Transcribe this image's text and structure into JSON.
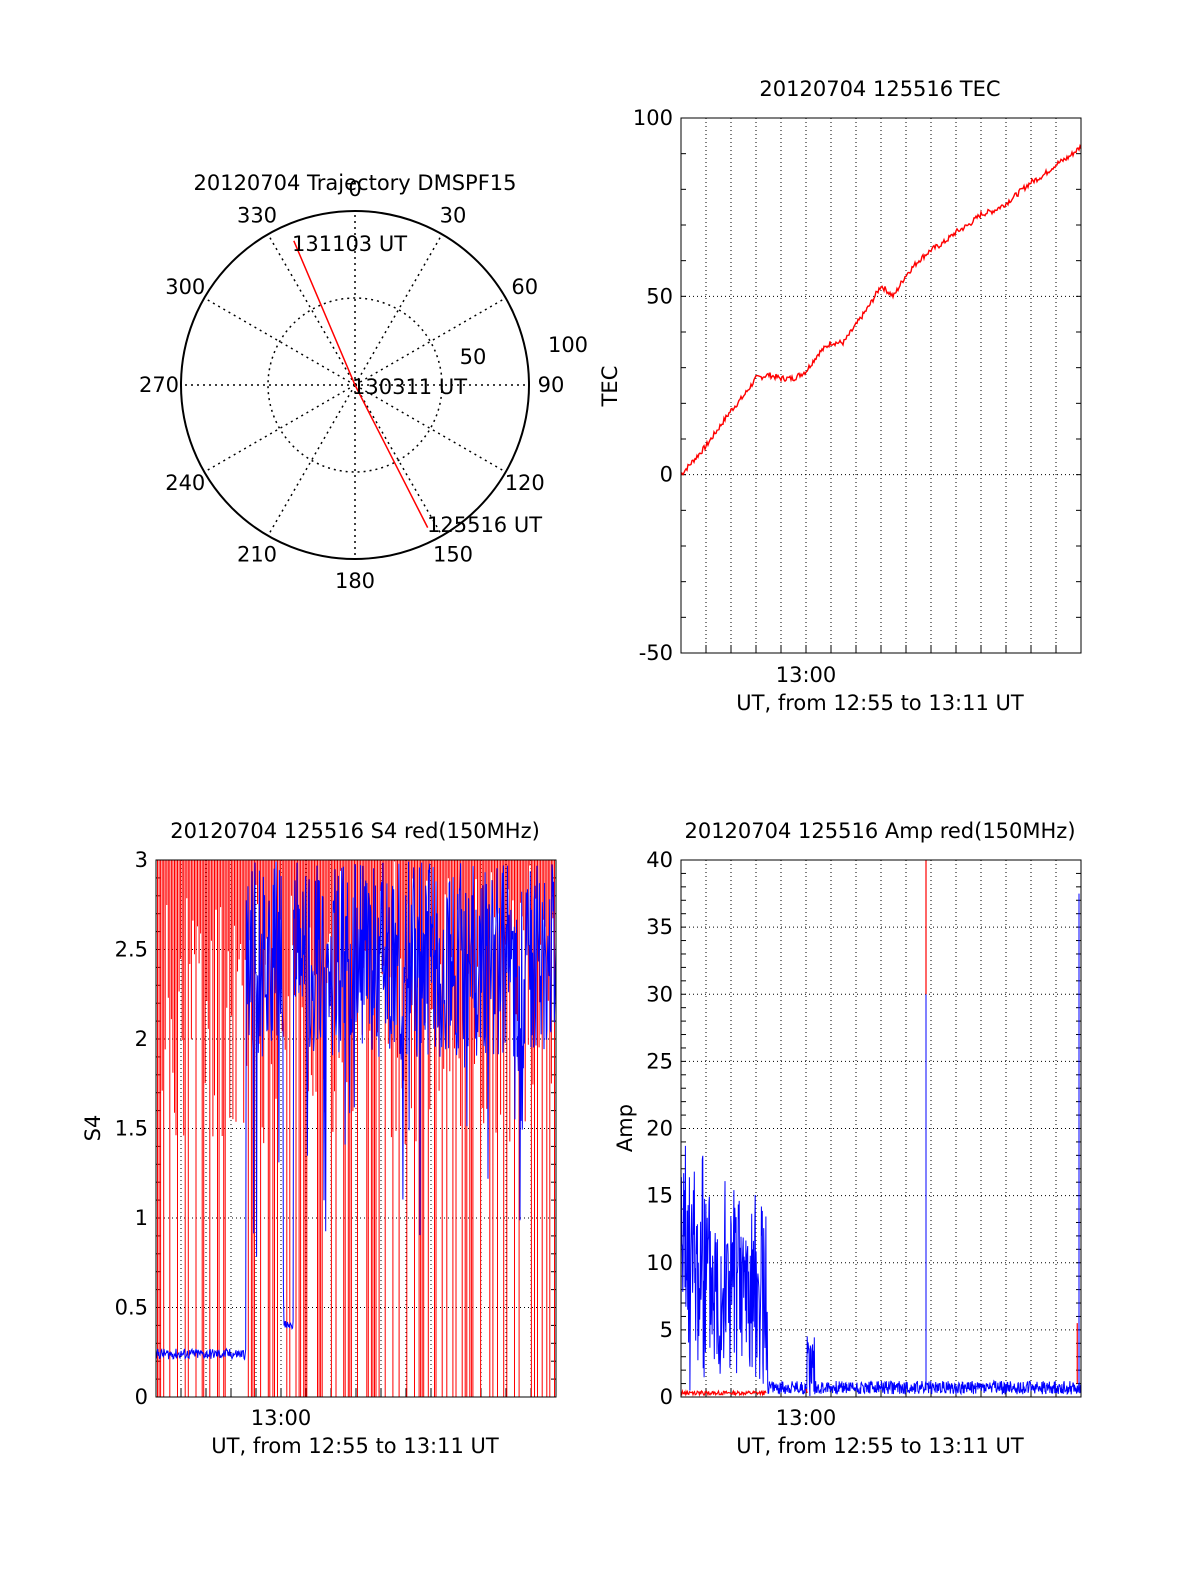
{
  "chart_data": [
    {
      "type": "polar",
      "title": "20120704 Trajectory DMSPF15",
      "azimuth_labels": [
        "0",
        "30",
        "60",
        "90",
        "120",
        "150",
        "180",
        "210",
        "240",
        "270",
        "300",
        "330"
      ],
      "radial_labels": [
        "50",
        "100"
      ],
      "radial_range": [
        0,
        100
      ],
      "grid": true,
      "trajectory": {
        "color": "#ff0000",
        "points": [
          {
            "az": 153,
            "r": 92,
            "label": "125516 UT"
          },
          {
            "az": 153,
            "r": 0,
            "label": "130311 UT"
          },
          {
            "az": 337,
            "r": 90,
            "label": "131103 UT"
          }
        ]
      }
    },
    {
      "type": "line",
      "title": "20120704 125516 TEC",
      "xlabel": "UT, from 12:55 to 13:11 UT",
      "ylabel": "TEC",
      "x_range": [
        "12:55",
        "13:11"
      ],
      "x_ticks": [
        "13:00"
      ],
      "ylim": [
        -50,
        100
      ],
      "y_ticks": [
        "-50",
        "0",
        "50",
        "100"
      ],
      "grid": true,
      "series": [
        {
          "color": "#ff0000",
          "x_minutes": [
            0,
            0.5,
            1,
            1.5,
            2,
            2.5,
            3,
            3.5,
            4,
            4.5,
            5,
            5.5,
            6,
            6.5,
            7,
            7.5,
            8,
            8.5,
            9,
            9.5,
            10,
            10.5,
            11,
            11.5,
            12,
            12.5,
            13,
            13.5,
            14,
            14.5,
            15,
            15.5,
            16
          ],
          "values": [
            0,
            4,
            8,
            13,
            18,
            22,
            27,
            28,
            27,
            27,
            29,
            34,
            37,
            37,
            42,
            47,
            53,
            50,
            56,
            60,
            63,
            65,
            68,
            70,
            73,
            74,
            76,
            79,
            82,
            84,
            87,
            89,
            92
          ]
        }
      ]
    },
    {
      "type": "line",
      "title": "20120704 125516 S4 red(150MHz)",
      "xlabel": "UT, from 12:55 to 13:11 UT",
      "ylabel": "S4",
      "x_range": [
        "12:55",
        "13:11"
      ],
      "x_ticks": [
        "13:00"
      ],
      "ylim": [
        0,
        3
      ],
      "y_ticks": [
        "0",
        "0.5",
        "1",
        "1.5",
        "2",
        "2.5",
        "3"
      ],
      "grid": true,
      "series": [
        {
          "color": "#ff0000",
          "description_values": [
            0,
            3
          ],
          "note": "saturated spikes between 0 and 3 throughout"
        },
        {
          "color": "#0000ff",
          "x_minutes": [
            0,
            1,
            2,
            3,
            3.5,
            4,
            5,
            5.2,
            5.5,
            6,
            7,
            8,
            9,
            10,
            11,
            12,
            13,
            14,
            15,
            16
          ],
          "values": [
            0.23,
            0.24,
            0.25,
            0.26,
            0.25,
            2.7,
            2.4,
            0.4,
            2.6,
            2.8,
            2.5,
            2.7,
            2.6,
            2.5,
            2.7,
            2.6,
            2.5,
            2.6,
            2.5,
            2.6
          ]
        }
      ]
    },
    {
      "type": "line",
      "title": "20120704 125516 Amp red(150MHz)",
      "xlabel": "UT, from 12:55 to 13:11 UT",
      "ylabel": "Amp",
      "x_range": [
        "12:55",
        "13:11"
      ],
      "x_ticks": [
        "13:00"
      ],
      "ylim": [
        0,
        40
      ],
      "y_ticks": [
        "0",
        "5",
        "10",
        "15",
        "20",
        "25",
        "30",
        "35",
        "40"
      ],
      "grid": true,
      "series": [
        {
          "color": "#ff0000",
          "x_minutes": [
            0,
            3.4,
            5.0,
            9.8,
            15.8,
            16
          ],
          "values": [
            0.3,
            0.3,
            0.6,
            40,
            5.5,
            0.5
          ]
        },
        {
          "color": "#0000ff",
          "x_minutes": [
            0,
            1,
            2,
            3,
            3.4,
            3.5,
            5.0,
            5.3,
            9.8,
            15.9,
            16
          ],
          "values": [
            18,
            15,
            13,
            12,
            12,
            1,
            5,
            1,
            30,
            37.5,
            1
          ]
        }
      ]
    }
  ]
}
